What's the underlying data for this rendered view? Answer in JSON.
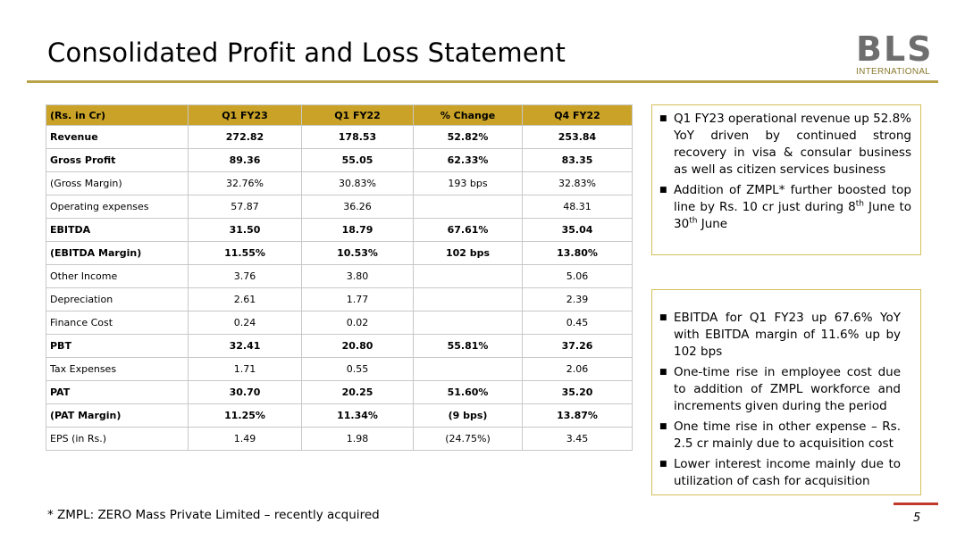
{
  "header": {
    "title": "Consolidated Profit and Loss Statement",
    "logo_mark": "BLS",
    "logo_sub": "INTERNATIONAL"
  },
  "table": {
    "columns": [
      "(Rs. in Cr)",
      "Q1 FY23",
      "Q1 FY22",
      "% Change",
      "Q4 FY22"
    ],
    "rows": [
      {
        "label": "Revenue",
        "q1fy23": "272.82",
        "q1fy22": "178.53",
        "change": "52.82%",
        "q4fy22": "253.84",
        "bold": true
      },
      {
        "label": "Gross Profit",
        "q1fy23": "89.36",
        "q1fy22": "55.05",
        "change": "62.33%",
        "q4fy22": "83.35",
        "bold": true
      },
      {
        "label": "(Gross Margin)",
        "q1fy23": "32.76%",
        "q1fy22": "30.83%",
        "change": "193 bps",
        "q4fy22": "32.83%",
        "bold": false
      },
      {
        "label": "Operating expenses",
        "q1fy23": "57.87",
        "q1fy22": "36.26",
        "change": "",
        "q4fy22": "48.31",
        "bold": false
      },
      {
        "label": "EBITDA",
        "q1fy23": "31.50",
        "q1fy22": "18.79",
        "change": "67.61%",
        "q4fy22": "35.04",
        "bold": true
      },
      {
        "label": "(EBITDA Margin)",
        "q1fy23": "11.55%",
        "q1fy22": "10.53%",
        "change": "102 bps",
        "q4fy22": "13.80%",
        "bold": true
      },
      {
        "label": "Other Income",
        "q1fy23": "3.76",
        "q1fy22": "3.80",
        "change": "",
        "q4fy22": "5.06",
        "bold": false
      },
      {
        "label": "Depreciation",
        "q1fy23": "2.61",
        "q1fy22": "1.77",
        "change": "",
        "q4fy22": "2.39",
        "bold": false
      },
      {
        "label": "Finance Cost",
        "q1fy23": "0.24",
        "q1fy22": "0.02",
        "change": "",
        "q4fy22": "0.45",
        "bold": false
      },
      {
        "label": "PBT",
        "q1fy23": "32.41",
        "q1fy22": "20.80",
        "change": "55.81%",
        "q4fy22": "37.26",
        "bold": true
      },
      {
        "label": "Tax Expenses",
        "q1fy23": "1.71",
        "q1fy22": "0.55",
        "change": "",
        "q4fy22": "2.06",
        "bold": false
      },
      {
        "label": "PAT",
        "q1fy23": "30.70",
        "q1fy22": "20.25",
        "change": "51.60%",
        "q4fy22": "35.20",
        "bold": true
      },
      {
        "label": "(PAT Margin)",
        "q1fy23": "11.25%",
        "q1fy22": "11.34%",
        "change": "(9 bps)",
        "q4fy22": "13.87%",
        "bold": true
      },
      {
        "label": "EPS (in Rs.)",
        "q1fy23": "1.49",
        "q1fy22": "1.98",
        "change": "(24.75%)",
        "q4fy22": "3.45",
        "bold": false
      }
    ]
  },
  "box1": {
    "bullet1": "Q1 FY23 operational revenue up 52.8% YoY driven by continued strong recovery in visa & consular business as well as citizen services business",
    "bullet2_pre": "Addition of ZMPL* further boosted top line by Rs. 10 cr just during 8",
    "bullet2_sup1": "th",
    "bullet2_mid": " June to 30",
    "bullet2_sup2": "th",
    "bullet2_post": " June"
  },
  "box2": {
    "bullets": [
      "EBITDA for Q1 FY23 up 67.6% YoY with EBITDA margin of 11.6% up by 102 bps",
      "One-time rise in employee cost due to addition of ZMPL workforce and increments given during the period",
      "One time rise in other expense – Rs. 2.5 cr mainly due to acquisition cost",
      "Lower interest income mainly due to utilization of cash for acquisition"
    ]
  },
  "footer": {
    "note": "* ZMPL: ZERO Mass Private Limited – recently acquired",
    "page_number": "5"
  },
  "colors": {
    "header_fill": "#c9a227",
    "rule": "#b8a24a",
    "box_border": "#d4bf5a",
    "page_marker": "#c0392b"
  }
}
